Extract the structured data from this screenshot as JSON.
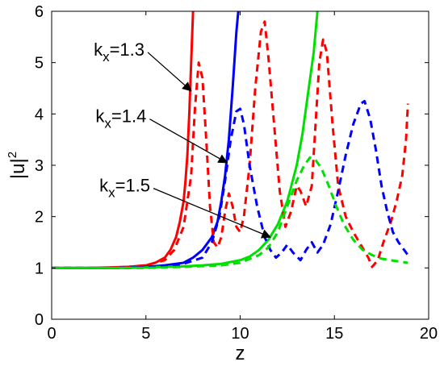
{
  "chart_data": {
    "type": "line",
    "xlabel": "z",
    "ylabel": "|u|",
    "ylabel_superscript": "2",
    "xlim": [
      0,
      20
    ],
    "ylim": [
      0,
      6
    ],
    "xticks": [
      0,
      5,
      10,
      15,
      20
    ],
    "yticks": [
      0,
      1,
      2,
      3,
      4,
      5,
      6
    ],
    "grid": false,
    "legend": "none",
    "series": [
      {
        "color": "#ff0000",
        "style": "solid",
        "points": [
          [
            0,
            1
          ],
          [
            2,
            1
          ],
          [
            3,
            1.01
          ],
          [
            4,
            1.02
          ],
          [
            5,
            1.05
          ],
          [
            5.5,
            1.1
          ],
          [
            6,
            1.2
          ],
          [
            6.3,
            1.35
          ],
          [
            6.6,
            1.6
          ],
          [
            6.8,
            1.9
          ],
          [
            7,
            2.3
          ],
          [
            7.1,
            2.7
          ],
          [
            7.2,
            3.2
          ],
          [
            7.3,
            4.0
          ],
          [
            7.4,
            5.0
          ],
          [
            7.5,
            6.0
          ]
        ]
      },
      {
        "color": "#0000ff",
        "style": "solid",
        "points": [
          [
            0,
            1
          ],
          [
            3,
            1
          ],
          [
            4,
            1.01
          ],
          [
            5,
            1.02
          ],
          [
            6,
            1.05
          ],
          [
            7,
            1.1
          ],
          [
            7.5,
            1.2
          ],
          [
            8,
            1.35
          ],
          [
            8.5,
            1.6
          ],
          [
            8.8,
            1.9
          ],
          [
            9,
            2.3
          ],
          [
            9.2,
            2.8
          ],
          [
            9.4,
            3.5
          ],
          [
            9.6,
            4.5
          ],
          [
            9.8,
            5.6
          ],
          [
            9.9,
            6.0
          ]
        ]
      },
      {
        "color": "#00e000",
        "style": "solid",
        "points": [
          [
            0,
            1
          ],
          [
            4,
            1
          ],
          [
            5,
            1.01
          ],
          [
            6,
            1.02
          ],
          [
            7,
            1.03
          ],
          [
            8,
            1.05
          ],
          [
            9,
            1.08
          ],
          [
            10,
            1.15
          ],
          [
            10.5,
            1.22
          ],
          [
            11,
            1.35
          ],
          [
            11.5,
            1.55
          ],
          [
            12,
            1.85
          ],
          [
            12.5,
            2.3
          ],
          [
            13,
            3.0
          ],
          [
            13.3,
            3.6
          ],
          [
            13.6,
            4.4
          ],
          [
            13.9,
            5.2
          ],
          [
            14.1,
            6.0
          ]
        ]
      },
      {
        "color": "#ff0000",
        "style": "dashed",
        "points": [
          [
            0,
            1
          ],
          [
            3,
            1
          ],
          [
            4,
            1.02
          ],
          [
            5,
            1.05
          ],
          [
            6,
            1.15
          ],
          [
            6.5,
            1.35
          ],
          [
            7,
            1.8
          ],
          [
            7.4,
            2.8
          ],
          [
            7.6,
            4.1
          ],
          [
            7.8,
            5.0
          ],
          [
            8.0,
            4.7
          ],
          [
            8.2,
            3.5
          ],
          [
            8.4,
            2.2
          ],
          [
            8.6,
            1.5
          ],
          [
            8.8,
            1.4
          ],
          [
            9.0,
            1.6
          ],
          [
            9.2,
            2.1
          ],
          [
            9.4,
            2.45
          ],
          [
            9.6,
            2.2
          ],
          [
            9.8,
            1.8
          ],
          [
            10.0,
            1.7
          ],
          [
            10.2,
            2.0
          ],
          [
            10.5,
            3.0
          ],
          [
            10.8,
            4.5
          ],
          [
            11.1,
            5.6
          ],
          [
            11.3,
            5.8
          ],
          [
            11.5,
            5.1
          ],
          [
            11.8,
            3.8
          ],
          [
            12.1,
            2.5
          ],
          [
            12.4,
            1.8
          ],
          [
            12.7,
            2.1
          ],
          [
            13.0,
            2.6
          ],
          [
            13.2,
            2.5
          ],
          [
            13.5,
            2.2
          ],
          [
            13.8,
            2.6
          ],
          [
            14.0,
            3.8
          ],
          [
            14.2,
            5.0
          ],
          [
            14.4,
            5.45
          ],
          [
            14.6,
            5.2
          ],
          [
            14.9,
            3.8
          ],
          [
            15.2,
            2.6
          ],
          [
            15.6,
            2.0
          ],
          [
            16.0,
            1.7
          ],
          [
            16.4,
            1.45
          ],
          [
            16.8,
            1.2
          ],
          [
            17.0,
            1.02
          ],
          [
            17.3,
            1.15
          ],
          [
            17.6,
            1.5
          ],
          [
            18.0,
            1.9
          ],
          [
            18.3,
            2.3
          ],
          [
            18.6,
            2.8
          ],
          [
            18.8,
            3.5
          ],
          [
            18.9,
            4.2
          ]
        ]
      },
      {
        "color": "#0000ff",
        "style": "dashed",
        "points": [
          [
            0,
            1
          ],
          [
            4,
            1
          ],
          [
            5,
            1.01
          ],
          [
            6,
            1.03
          ],
          [
            7,
            1.08
          ],
          [
            8,
            1.2
          ],
          [
            8.5,
            1.5
          ],
          [
            8.9,
            2.0
          ],
          [
            9.2,
            2.7
          ],
          [
            9.5,
            3.5
          ],
          [
            9.8,
            4.05
          ],
          [
            10.0,
            4.1
          ],
          [
            10.2,
            3.8
          ],
          [
            10.5,
            3.0
          ],
          [
            10.9,
            2.2
          ],
          [
            11.3,
            1.6
          ],
          [
            11.6,
            1.35
          ],
          [
            11.9,
            1.2
          ],
          [
            12.2,
            1.3
          ],
          [
            12.5,
            1.45
          ],
          [
            12.8,
            1.3
          ],
          [
            13.2,
            1.15
          ],
          [
            13.5,
            1.35
          ],
          [
            13.8,
            1.5
          ],
          [
            14.1,
            1.3
          ],
          [
            14.4,
            1.45
          ],
          [
            14.8,
            1.85
          ],
          [
            15.2,
            2.5
          ],
          [
            15.6,
            3.2
          ],
          [
            16.0,
            3.8
          ],
          [
            16.4,
            4.2
          ],
          [
            16.6,
            4.25
          ],
          [
            16.9,
            3.9
          ],
          [
            17.2,
            3.3
          ],
          [
            17.5,
            2.6
          ],
          [
            17.8,
            2.1
          ],
          [
            18.1,
            1.7
          ],
          [
            18.4,
            1.5
          ],
          [
            18.7,
            1.35
          ],
          [
            18.9,
            1.25
          ]
        ]
      },
      {
        "color": "#00e000",
        "style": "dashed",
        "points": [
          [
            0,
            1
          ],
          [
            5,
            1
          ],
          [
            7,
            1.02
          ],
          [
            9,
            1.05
          ],
          [
            10,
            1.1
          ],
          [
            11,
            1.25
          ],
          [
            11.5,
            1.4
          ],
          [
            12,
            1.7
          ],
          [
            12.5,
            2.2
          ],
          [
            13,
            2.7
          ],
          [
            13.4,
            3.0
          ],
          [
            13.7,
            3.15
          ],
          [
            14.0,
            3.1
          ],
          [
            14.3,
            2.95
          ],
          [
            14.7,
            2.6
          ],
          [
            15.1,
            2.2
          ],
          [
            15.5,
            1.85
          ],
          [
            16.0,
            1.55
          ],
          [
            16.5,
            1.35
          ],
          [
            17.0,
            1.25
          ],
          [
            17.5,
            1.18
          ],
          [
            18.0,
            1.15
          ],
          [
            18.5,
            1.12
          ],
          [
            18.9,
            1.1
          ]
        ]
      }
    ],
    "annotations": [
      {
        "text": "k",
        "subscript": "x",
        "suffix": "=1.3",
        "arrow_from": [
          5.1,
          5.2
        ],
        "arrow_to": [
          7.4,
          4.45
        ]
      },
      {
        "text": "k",
        "subscript": "x",
        "suffix": "=1.4",
        "arrow_from": [
          5.2,
          3.9
        ],
        "arrow_to": [
          9.3,
          3.05
        ]
      },
      {
        "text": "k",
        "subscript": "x",
        "suffix": "=1.5",
        "arrow_from": [
          5.4,
          2.55
        ],
        "arrow_to": [
          11.6,
          1.6
        ]
      }
    ]
  }
}
